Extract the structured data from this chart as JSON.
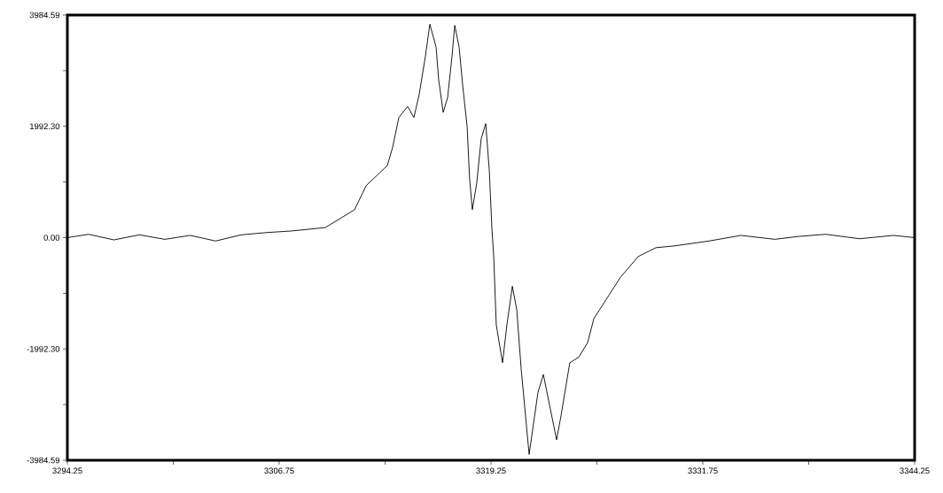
{
  "chart_data": {
    "type": "line",
    "x": [
      3294.25,
      3295.5,
      3297.0,
      3298.5,
      3300.0,
      3301.5,
      3303.0,
      3304.5,
      3305.97,
      3307.5,
      3309.47,
      3311.2,
      3311.88,
      3313.13,
      3313.44,
      3313.81,
      3314.33,
      3314.7,
      3315.01,
      3315.38,
      3315.64,
      3316.01,
      3316.16,
      3316.43,
      3316.69,
      3316.95,
      3317.11,
      3317.37,
      3317.58,
      3317.84,
      3317.99,
      3318.15,
      3318.41,
      3318.67,
      3318.94,
      3319.15,
      3319.3,
      3319.41,
      3319.56,
      3319.93,
      3320.19,
      3320.51,
      3320.77,
      3321.03,
      3321.5,
      3322.02,
      3322.34,
      3322.7,
      3323.12,
      3323.38,
      3323.9,
      3324.43,
      3324.95,
      3325.32,
      3326.21,
      3326.89,
      3327.93,
      3328.98,
      3330.02,
      3332.12,
      3334.0,
      3336.0,
      3337.35,
      3339.0,
      3341.0,
      3343.0,
      3344.25
    ],
    "values": [
      0,
      60,
      -40,
      50,
      -30,
      40,
      -60,
      50,
      90,
      120,
      180,
      500,
      930,
      1290,
      1610,
      2150,
      2350,
      2150,
      2560,
      3250,
      3820,
      3410,
      2830,
      2240,
      2510,
      3250,
      3800,
      3410,
      2720,
      1990,
      1040,
      500,
      980,
      1770,
      2040,
      1200,
      180,
      -340,
      -1560,
      -2240,
      -1560,
      -870,
      -1290,
      -2350,
      -3880,
      -2770,
      -2450,
      -2990,
      -3620,
      -3190,
      -2240,
      -2140,
      -1880,
      -1450,
      -1030,
      -710,
      -340,
      -180,
      -150,
      -60,
      40,
      -30,
      20,
      60,
      -20,
      40,
      0
    ],
    "color": "#000000",
    "xlim": [
      3294.25,
      3344.25
    ],
    "ylim": [
      -3984.59,
      3984.59
    ],
    "xticks": [
      3294.25,
      {
        "value": 3300.5,
        "label": null
      },
      3306.75,
      {
        "value": 3313.0,
        "label": null
      },
      3319.25,
      {
        "value": 3325.5,
        "label": null
      },
      3331.75,
      {
        "value": 3338.0,
        "label": null
      },
      3344.25
    ],
    "yticks": [
      -3984.59,
      {
        "value": -2988.44,
        "label": null
      },
      {
        "value": -1992.3,
        "label": "-1992.30"
      },
      {
        "value": -996.15,
        "label": null
      },
      {
        "value": 0,
        "label": "0.00"
      },
      {
        "value": 996.15,
        "label": null
      },
      {
        "value": 1992.3,
        "label": "1992.30"
      },
      {
        "value": 2988.44,
        "label": null
      },
      3984.59
    ],
    "grid": false,
    "marker": "none",
    "line_style": "solid"
  }
}
